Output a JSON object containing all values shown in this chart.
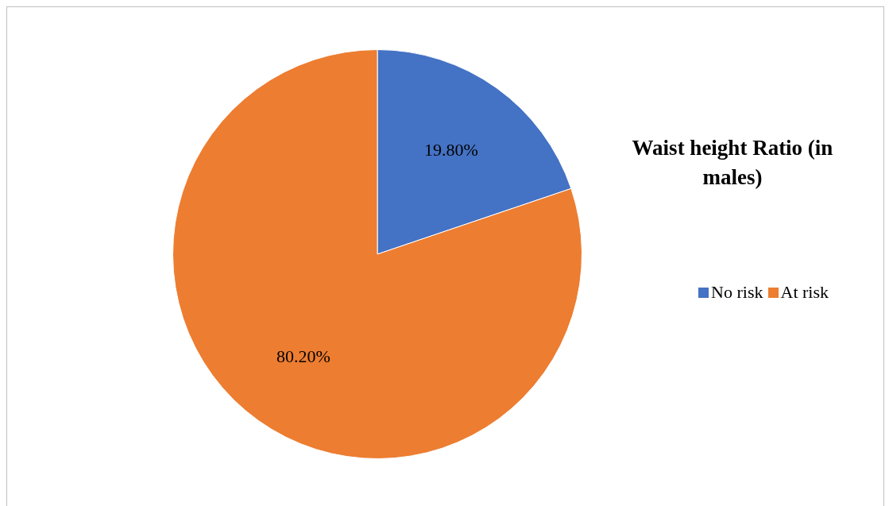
{
  "chart_data": {
    "type": "pie",
    "title": "Waist height Ratio (in males)",
    "categories": [
      "No risk",
      "At risk"
    ],
    "values": [
      19.8,
      80.2
    ],
    "colors": [
      "#4472c4",
      "#ed7d31"
    ],
    "value_labels": [
      "19.80%",
      "80.20%"
    ],
    "legend": "right"
  }
}
